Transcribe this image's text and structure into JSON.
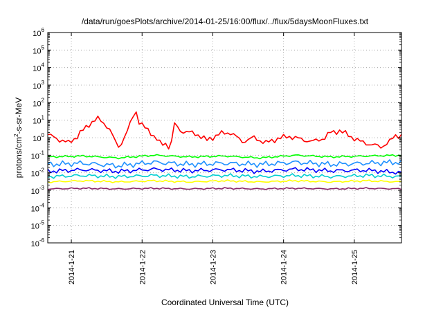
{
  "chart_data": {
    "type": "line",
    "title": "/data/run/goesPlots/archive/2014-01-25/16:00/flux/../flux/5daysMoonFluxes.txt",
    "xlabel": "Coordinated Universal Time (UTC)",
    "ylabel": {
      "base": "protons/cm",
      "sup": "2",
      "rest": "-s-sr-MeV"
    },
    "yscale": "log",
    "ylim": [
      1e-06,
      1000000.0
    ],
    "xlim": [
      "2014-01-20T16:00",
      "2014-01-25T16:00"
    ],
    "grid": true,
    "y_ticks": [
      {
        "value": 1e-06,
        "base": "10",
        "exp": "-6"
      },
      {
        "value": 1e-05,
        "base": "10",
        "exp": "-5"
      },
      {
        "value": 0.0001,
        "base": "10",
        "exp": "-4"
      },
      {
        "value": 0.001,
        "base": "10",
        "exp": "-3"
      },
      {
        "value": 0.01,
        "base": "10",
        "exp": "-2"
      },
      {
        "value": 0.1,
        "base": "10",
        "exp": "-1"
      },
      {
        "value": 1,
        "base": "10",
        "exp": "0"
      },
      {
        "value": 10,
        "base": "10",
        "exp": "1"
      },
      {
        "value": 100,
        "base": "10",
        "exp": "2"
      },
      {
        "value": 1000,
        "base": "10",
        "exp": "3"
      },
      {
        "value": 10000,
        "base": "10",
        "exp": "4"
      },
      {
        "value": 100000,
        "base": "10",
        "exp": "5"
      },
      {
        "value": 1000000,
        "base": "10",
        "exp": "6"
      }
    ],
    "x_ticks": [
      {
        "x": "2014-01-21T00:00",
        "label": "2014-1-21"
      },
      {
        "x": "2014-01-22T00:00",
        "label": "2014-1-22"
      },
      {
        "x": "2014-01-23T00:00",
        "label": "2014-1-23"
      },
      {
        "x": "2014-01-24T00:00",
        "label": "2014-1-24"
      },
      {
        "x": "2014-01-25T00:00",
        "label": "2014-1-25"
      }
    ],
    "series": [
      {
        "color": "#ff0000",
        "x": [
          "2014-01-20T16:00",
          "2014-01-20T19:00",
          "2014-01-20T23:00",
          "2014-01-21T02:00",
          "2014-01-21T05:00",
          "2014-01-21T07:00",
          "2014-01-21T09:00",
          "2014-01-21T11:00",
          "2014-01-21T13:00",
          "2014-01-21T14:00",
          "2014-01-21T16:00",
          "2014-01-21T18:00",
          "2014-01-21T20:00",
          "2014-01-21T21:00",
          "2014-01-21T22:00",
          "2014-01-21T23:00",
          "2014-01-22T00:00",
          "2014-01-22T03:00",
          "2014-01-22T06:00",
          "2014-01-22T07:00",
          "2014-01-22T08:00",
          "2014-01-22T09:00",
          "2014-01-22T10:00",
          "2014-01-22T11:00",
          "2014-01-22T13:00",
          "2014-01-22T16:00",
          "2014-01-22T19:00",
          "2014-01-22T22:00",
          "2014-01-23T02:00",
          "2014-01-23T06:00",
          "2014-01-23T10:00",
          "2014-01-23T14:00",
          "2014-01-23T18:00",
          "2014-01-23T22:00",
          "2014-01-24T02:00",
          "2014-01-24T06:00",
          "2014-01-24T10:00",
          "2014-01-24T14:00",
          "2014-01-24T16:00",
          "2014-01-24T19:00",
          "2014-01-24T22:00",
          "2014-01-25T02:00",
          "2014-01-25T06:00",
          "2014-01-25T09:00",
          "2014-01-25T12:00",
          "2014-01-25T14:00",
          "2014-01-25T16:00"
        ],
        "values": [
          1.5,
          0.9,
          0.5,
          1.2,
          4.0,
          8.0,
          12.0,
          7.0,
          3.0,
          1.2,
          0.3,
          1.0,
          6.0,
          20.0,
          30.0,
          8.0,
          5.0,
          2.0,
          0.5,
          0.4,
          0.5,
          0.3,
          0.6,
          6.0,
          2.5,
          2.0,
          1.5,
          0.7,
          1.6,
          2.0,
          0.6,
          1.0,
          0.5,
          0.9,
          1.2,
          0.8,
          0.6,
          1.0,
          2.0,
          2.5,
          1.4,
          0.6,
          0.4,
          0.3,
          0.6,
          1.3,
          1.4
        ]
      },
      {
        "color": "#00ff00",
        "x": [
          "2014-01-20T16:00",
          "2014-01-21T04:00",
          "2014-01-21T16:00",
          "2014-01-22T04:00",
          "2014-01-22T16:00",
          "2014-01-23T04:00",
          "2014-01-23T16:00",
          "2014-01-24T04:00",
          "2014-01-24T16:00",
          "2014-01-25T04:00",
          "2014-01-25T16:00"
        ],
        "values": [
          0.08,
          0.09,
          0.07,
          0.1,
          0.08,
          0.09,
          0.07,
          0.1,
          0.08,
          0.09,
          0.1
        ]
      },
      {
        "color": "#1e90ff",
        "x": [
          "2014-01-20T16:00",
          "2014-01-21T04:00",
          "2014-01-21T16:00",
          "2014-01-22T04:00",
          "2014-01-22T16:00",
          "2014-01-23T04:00",
          "2014-01-23T16:00",
          "2014-01-24T04:00",
          "2014-01-24T16:00",
          "2014-01-25T04:00",
          "2014-01-25T16:00"
        ],
        "values": [
          0.03,
          0.035,
          0.025,
          0.04,
          0.03,
          0.035,
          0.03,
          0.04,
          0.03,
          0.035,
          0.04
        ]
      },
      {
        "color": "#0000ff",
        "x": [
          "2014-01-20T16:00",
          "2014-01-21T04:00",
          "2014-01-21T16:00",
          "2014-01-22T04:00",
          "2014-01-22T16:00",
          "2014-01-23T04:00",
          "2014-01-23T16:00",
          "2014-01-24T04:00",
          "2014-01-24T16:00",
          "2014-01-25T04:00",
          "2014-01-25T16:00"
        ],
        "values": [
          0.012,
          0.015,
          0.012,
          0.016,
          0.013,
          0.015,
          0.012,
          0.016,
          0.013,
          0.014,
          0.01
        ]
      },
      {
        "color": "#00ced1",
        "x": [
          "2014-01-20T16:00",
          "2014-01-21T04:00",
          "2014-01-21T16:00",
          "2014-01-22T04:00",
          "2014-01-22T16:00",
          "2014-01-23T04:00",
          "2014-01-23T16:00",
          "2014-01-24T04:00",
          "2014-01-24T16:00",
          "2014-01-25T04:00",
          "2014-01-25T16:00"
        ],
        "values": [
          0.006,
          0.007,
          0.006,
          0.007,
          0.006,
          0.007,
          0.006,
          0.007,
          0.006,
          0.007,
          0.006
        ]
      },
      {
        "color": "#ffff00",
        "x": [
          "2014-01-20T16:00",
          "2014-01-21T04:00",
          "2014-01-21T16:00",
          "2014-01-22T04:00",
          "2014-01-22T16:00",
          "2014-01-23T04:00",
          "2014-01-23T16:00",
          "2014-01-24T04:00",
          "2014-01-24T16:00",
          "2014-01-25T04:00",
          "2014-01-25T16:00"
        ],
        "values": [
          0.003,
          0.0035,
          0.003,
          0.0035,
          0.003,
          0.0035,
          0.003,
          0.0035,
          0.003,
          0.0035,
          0.003
        ]
      },
      {
        "color": "#8b2a6b",
        "x": [
          "2014-01-20T16:00",
          "2014-01-21T04:00",
          "2014-01-21T16:00",
          "2014-01-22T04:00",
          "2014-01-22T16:00",
          "2014-01-23T04:00",
          "2014-01-23T16:00",
          "2014-01-24T04:00",
          "2014-01-24T16:00",
          "2014-01-25T04:00",
          "2014-01-25T16:00"
        ],
        "values": [
          0.0012,
          0.0013,
          0.0012,
          0.0013,
          0.0012,
          0.0013,
          0.0012,
          0.0013,
          0.0012,
          0.0013,
          0.0012
        ]
      }
    ]
  }
}
